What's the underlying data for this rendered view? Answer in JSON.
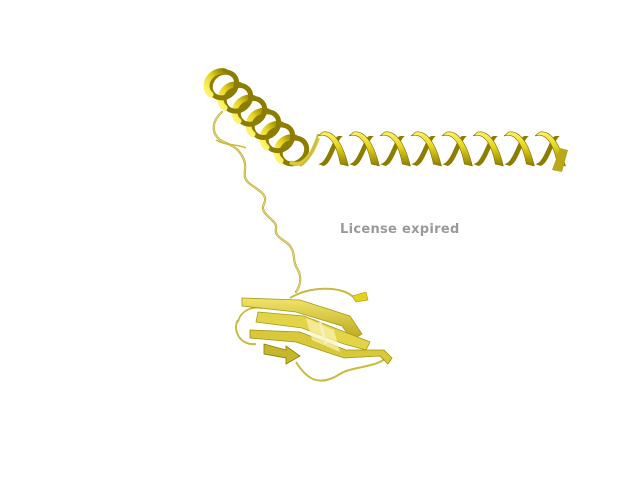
{
  "watermark": {
    "text": "License expired"
  },
  "render": {
    "background_color": "#ffffff",
    "ribbon_color": "#e3d21b",
    "ribbon_shadow_color": "#8c7d00",
    "ribbon_highlight_color": "#fff36a",
    "loop_color": "#d9cc55",
    "watermark_color": "#9a9a9a"
  },
  "model": {
    "elements": [
      {
        "name": "helix-a",
        "type": "helix-icon"
      },
      {
        "name": "helix-b",
        "type": "helix-icon"
      },
      {
        "name": "coil-linker",
        "type": "coil-icon"
      },
      {
        "name": "beta-sheet",
        "type": "strand-icon"
      }
    ]
  }
}
